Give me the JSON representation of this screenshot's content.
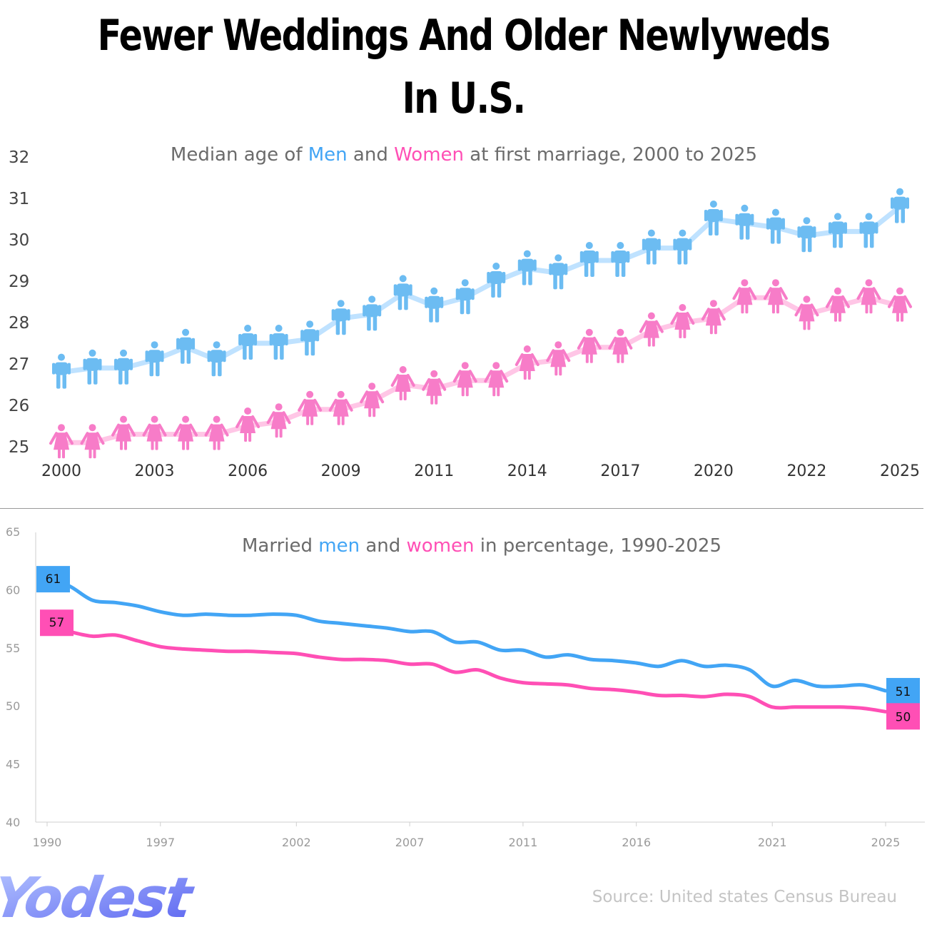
{
  "title": "Fewer Weddings And Older Newlyweds In U.S.",
  "colors": {
    "men": "#42a5f5",
    "women": "#ff4fb5",
    "men_light": "#bfe2ff",
    "women_light": "#ffc6e6",
    "men_icon": "#6cbcf2",
    "women_icon": "#f77cc8"
  },
  "source": "Source: United states Census Bureau",
  "logo": "Yodest",
  "chart_data": [
    {
      "type": "line",
      "subtitle": [
        "Median age of ",
        "Men",
        " and ",
        "Women",
        " at first marriage, 2000 to 2025"
      ],
      "x_tick_labels": [
        "2000",
        "2003",
        "2006",
        "2009",
        "2011",
        "2014",
        "2017",
        "2020",
        "2022",
        "2025"
      ],
      "ylim": [
        25,
        32
      ],
      "y_ticks": [
        25,
        26,
        27,
        28,
        29,
        30,
        31,
        32
      ],
      "markers": [
        "man-icon",
        "woman-icon"
      ],
      "series": [
        {
          "name": "Men",
          "values": [
            26.8,
            26.9,
            26.9,
            27.1,
            27.4,
            27.1,
            27.5,
            27.5,
            27.6,
            28.1,
            28.2,
            28.7,
            28.4,
            28.6,
            29.0,
            29.3,
            29.2,
            29.5,
            29.5,
            29.8,
            29.8,
            30.5,
            30.4,
            30.3,
            30.1,
            30.2,
            30.2,
            30.8
          ]
        },
        {
          "name": "Women",
          "values": [
            25.1,
            25.1,
            25.3,
            25.3,
            25.3,
            25.3,
            25.5,
            25.6,
            25.9,
            25.9,
            26.1,
            26.5,
            26.4,
            26.6,
            26.6,
            27.0,
            27.1,
            27.4,
            27.4,
            27.8,
            28.0,
            28.1,
            28.6,
            28.6,
            28.2,
            28.4,
            28.6,
            28.4
          ]
        }
      ]
    },
    {
      "type": "line",
      "subtitle": [
        "Married ",
        "men",
        " and ",
        "women",
        " in percentage, 1990-2025"
      ],
      "x_tick_labels": [
        "1990",
        "1997",
        "2002",
        "2007",
        "2011",
        "2016",
        "2021",
        "2025"
      ],
      "ylim": [
        40,
        65
      ],
      "y_ticks": [
        40,
        45,
        50,
        55,
        60,
        65
      ],
      "start_labels": [
        "61",
        "57"
      ],
      "end_labels": [
        "51",
        "50"
      ],
      "series": [
        {
          "name": "men",
          "values": [
            61.0,
            60.3,
            59.1,
            58.9,
            58.6,
            58.1,
            57.8,
            57.9,
            57.8,
            57.8,
            57.9,
            57.8,
            57.3,
            57.1,
            56.9,
            56.7,
            56.4,
            56.4,
            55.5,
            55.5,
            54.8,
            54.8,
            54.2,
            54.4,
            54.0,
            53.9,
            53.7,
            53.4,
            53.9,
            53.4,
            53.5,
            53.1,
            51.7,
            52.2,
            51.7,
            51.7,
            51.8,
            51.3
          ]
        },
        {
          "name": "women",
          "values": [
            57.0,
            56.4,
            56.0,
            56.1,
            55.6,
            55.1,
            54.9,
            54.8,
            54.7,
            54.7,
            54.6,
            54.5,
            54.2,
            54.0,
            54.0,
            53.9,
            53.6,
            53.6,
            52.9,
            53.1,
            52.4,
            52.0,
            51.9,
            51.8,
            51.5,
            51.4,
            51.2,
            50.9,
            50.9,
            50.8,
            51.0,
            50.8,
            49.9,
            49.9,
            49.9,
            49.9,
            49.8,
            49.5
          ]
        }
      ]
    }
  ]
}
